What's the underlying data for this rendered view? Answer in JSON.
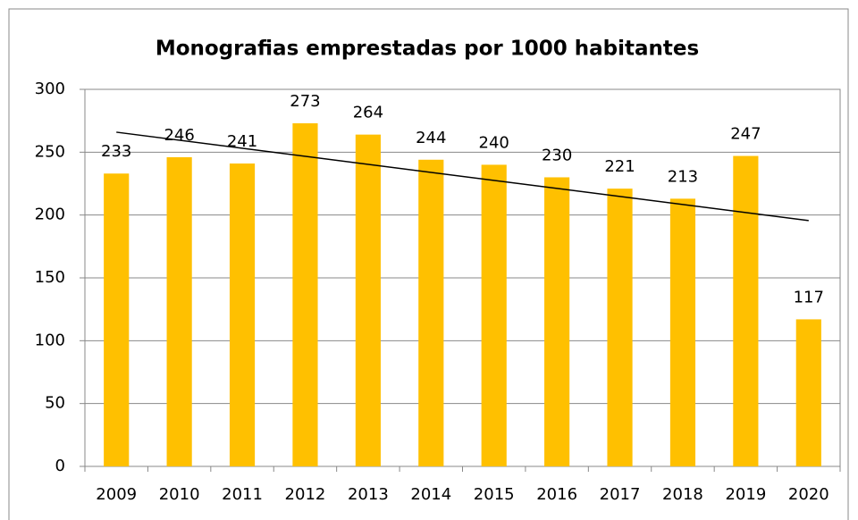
{
  "chart_data": {
    "type": "bar",
    "title": "Monografias emprestadas por 1000 habitantes",
    "categories": [
      "2009",
      "2010",
      "2011",
      "2012",
      "2013",
      "2014",
      "2015",
      "2016",
      "2017",
      "2018",
      "2019",
      "2020"
    ],
    "values": [
      233,
      246,
      241,
      273,
      264,
      244,
      240,
      230,
      221,
      213,
      247,
      117
    ],
    "color": "#ffc000",
    "ylim": [
      0,
      300
    ],
    "yticks": [
      0,
      50,
      100,
      150,
      200,
      250,
      300
    ],
    "grid": true,
    "trendline": true
  }
}
